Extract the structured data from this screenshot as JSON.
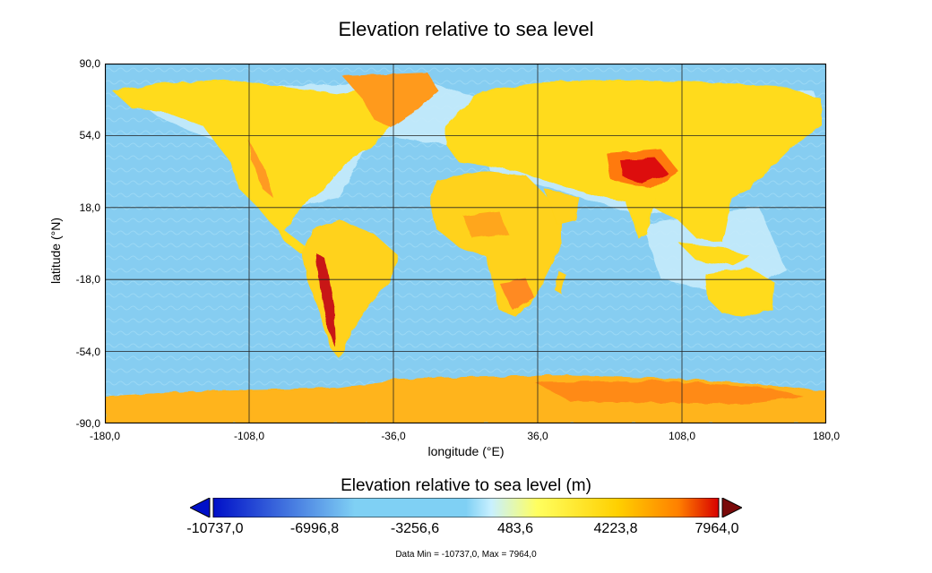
{
  "title": "Elevation relative to sea level",
  "axes": {
    "xlabel": "longitude (°E)",
    "ylabel": "latitude (°N)",
    "xticks": [
      "-180,0",
      "-108,0",
      "-36,0",
      "36,0",
      "108,0",
      "180,0"
    ],
    "yticks": [
      "90,0",
      "54,0",
      "18,0",
      "-18,0",
      "-54,0",
      "-90,0"
    ],
    "xrange": [
      -180,
      180
    ],
    "yrange": [
      -90,
      90
    ],
    "grid": true
  },
  "colorbar": {
    "title": "Elevation relative to sea level (m)",
    "labels": [
      "-10737,0",
      "-6996,8",
      "-3256,6",
      "483,6",
      "4223,8",
      "7964,0"
    ],
    "colors": {
      "deep": "#0010c8",
      "ocean": "#7fd0f4",
      "shelf": "#c8f0ff",
      "low": "#ffff60",
      "land": "#ffd000",
      "high": "#ff8000",
      "peak": "#d80000",
      "max": "#7a0a0a"
    }
  },
  "footer": "Data Min = -10737,0, Max = 7964,0"
}
